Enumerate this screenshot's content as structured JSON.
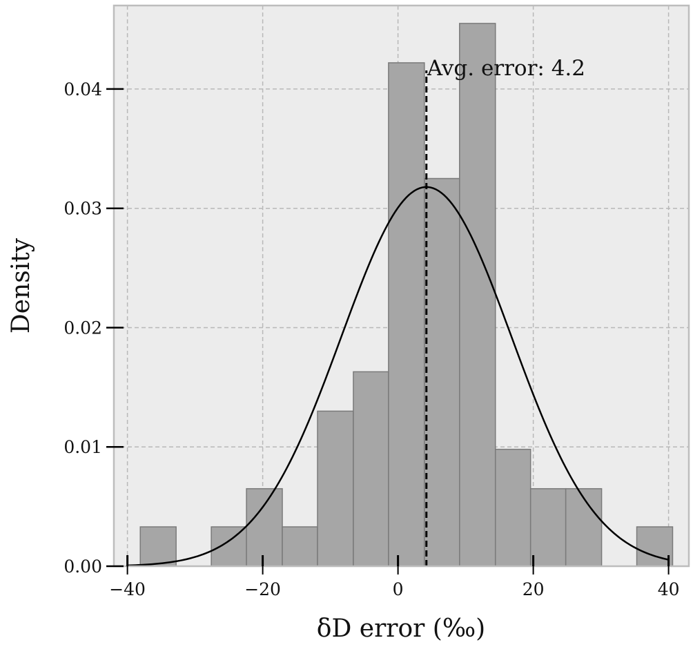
{
  "chart_data": {
    "type": "bar",
    "subtype": "histogram with normal density curve",
    "title": "",
    "xlabel": "δD error (‰)",
    "ylabel": "Density",
    "xlim": [
      -42,
      43
    ],
    "ylim": [
      0,
      0.047
    ],
    "xticks": [
      -40,
      -20,
      0,
      20,
      40
    ],
    "xtick_labels": [
      "−40",
      "−20",
      "0",
      "20",
      "40"
    ],
    "yticks": [
      0.0,
      0.01,
      0.02,
      0.03,
      0.04
    ],
    "ytick_labels": [
      "0.00",
      "0.01",
      "0.02",
      "0.03",
      "0.04"
    ],
    "grid": true,
    "bins": {
      "edges": [
        -38.1,
        -32.8,
        -27.6,
        -22.4,
        -17.1,
        -11.9,
        -6.6,
        -1.4,
        3.9,
        9.1,
        14.4,
        19.6,
        24.8,
        30.1,
        35.3,
        40.6
      ],
      "values": [
        0.0033,
        0.0,
        0.0033,
        0.0065,
        0.0033,
        0.013,
        0.0163,
        0.0422,
        0.0325,
        0.0455,
        0.0098,
        0.0065,
        0.0065,
        0.0,
        0.0033
      ]
    },
    "curve": {
      "type": "normal pdf",
      "mean": 4.2,
      "std": 12.55,
      "x_range": [
        -40,
        40
      ]
    },
    "mean_line": {
      "x": 4.2,
      "style": "dashed",
      "label": "Avg. error: 4.2"
    },
    "colors": {
      "plot_background": "#ececec",
      "bar_fill": "#a6a6a6",
      "bar_edge": "#7a7a7a",
      "grid": "#b8b8b8",
      "curve": "#000000",
      "spine": "#bdbdbd"
    }
  }
}
